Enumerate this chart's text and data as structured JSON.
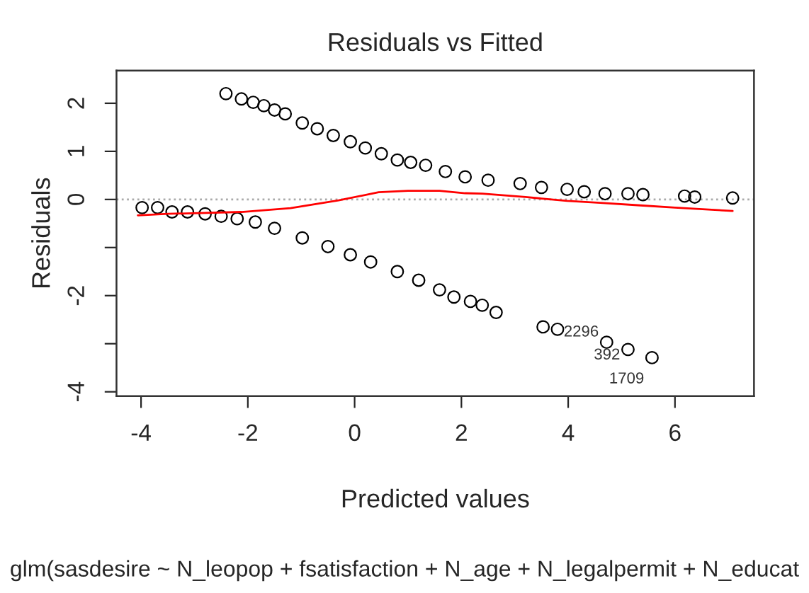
{
  "chart_data": {
    "type": "scatter",
    "title": "Residuals vs Fitted",
    "subtitle": "glm(sasdesire ~ N_leopop + fsatisfaction + N_age + N_legalpermit + N_educat",
    "xlabel": "Predicted values",
    "ylabel": "Residuals",
    "xlim": [
      -4.46,
      7.48
    ],
    "ylim": [
      -4.09,
      2.68
    ],
    "xticks": [
      -4,
      -2,
      0,
      2,
      4,
      6
    ],
    "yticks": [
      {
        "value": -4,
        "label": "-4"
      },
      {
        "value": -3,
        "label": null
      },
      {
        "value": -2,
        "label": "-2"
      },
      {
        "value": -1,
        "label": null
      },
      0,
      1,
      2
    ],
    "marker": "circle",
    "grid": false,
    "series": [
      {
        "color": "#000000",
        "x": [
          -2.41,
          -2.12,
          -1.9,
          -1.7,
          -1.5,
          -1.3,
          -0.98,
          -0.7,
          -0.4,
          -0.08,
          0.2,
          0.5,
          0.8,
          1.05,
          1.33,
          1.7,
          2.07,
          2.5,
          3.1,
          3.5,
          3.98,
          4.3,
          4.69,
          5.12,
          5.4,
          6.18,
          6.37,
          7.08
        ],
        "values": [
          2.2,
          2.09,
          2.02,
          1.95,
          1.86,
          1.78,
          1.59,
          1.47,
          1.33,
          1.2,
          1.07,
          0.95,
          0.82,
          0.77,
          0.71,
          0.58,
          0.47,
          0.4,
          0.33,
          0.25,
          0.21,
          0.16,
          0.12,
          0.12,
          0.1,
          0.07,
          0.05,
          0.03
        ]
      },
      {
        "color": "#000000",
        "x": [
          -3.98,
          -3.69,
          -3.42,
          -3.13,
          -2.8,
          -2.5,
          -2.2,
          -1.86,
          -1.5,
          -0.98,
          -0.5,
          -0.08,
          0.3,
          0.8,
          1.2,
          1.59,
          1.86,
          2.17,
          2.39,
          2.65,
          3.53,
          3.8,
          4.72,
          5.12,
          5.57
        ],
        "values": [
          -0.17,
          -0.17,
          -0.26,
          -0.26,
          -0.3,
          -0.35,
          -0.4,
          -0.47,
          -0.6,
          -0.8,
          -0.98,
          -1.15,
          -1.3,
          -1.5,
          -1.68,
          -1.88,
          -2.03,
          -2.12,
          -2.2,
          -2.35,
          -2.65,
          -2.7,
          -2.97,
          -3.12,
          -3.29
        ]
      },
      {
        "type": "line",
        "color": "#ff0000",
        "marker": "none",
        "x": [
          -4.06,
          -3.5,
          -2.12,
          -1.2,
          -0.3,
          0.45,
          1.0,
          1.59,
          2.07,
          2.39,
          3.2,
          3.98,
          4.6,
          5.3,
          6.0,
          6.63,
          7.08
        ],
        "values": [
          -0.33,
          -0.3,
          -0.26,
          -0.18,
          -0.02,
          0.15,
          0.18,
          0.18,
          0.13,
          0.12,
          0.05,
          -0.03,
          -0.07,
          -0.12,
          -0.17,
          -0.21,
          -0.24
        ]
      }
    ],
    "ref_lines": [
      {
        "axis": "y",
        "value": 0,
        "color": "#aaaaaa",
        "line_style": "dotted"
      }
    ],
    "annotations": [
      {
        "text": "2296",
        "x": 4.72,
        "y": -2.97
      },
      {
        "text": "392",
        "x": 5.12,
        "y": -3.12
      },
      {
        "text": "1709",
        "x": 5.57,
        "y": -3.29
      }
    ]
  }
}
